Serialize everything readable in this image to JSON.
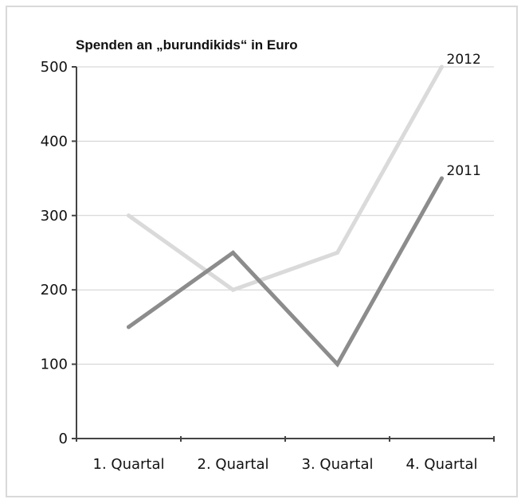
{
  "chart_data": {
    "type": "line",
    "title": "Spenden an „burundikids“ in Euro",
    "xlabel": "",
    "ylabel": "",
    "categories": [
      "1. Quartal",
      "2. Quartal",
      "3. Quartal",
      "4. Quartal"
    ],
    "ylim": [
      0,
      500
    ],
    "yticks": [
      "0",
      "100",
      "200",
      "300",
      "400",
      "500"
    ],
    "grid": true,
    "legend": "end-of-line labels",
    "series": [
      {
        "name": "2012",
        "values": [
          300,
          200,
          250,
          500
        ],
        "color": "#dadada"
      },
      {
        "name": "2011",
        "values": [
          150,
          250,
          100,
          350
        ],
        "color": "#8c8c8c"
      }
    ]
  }
}
